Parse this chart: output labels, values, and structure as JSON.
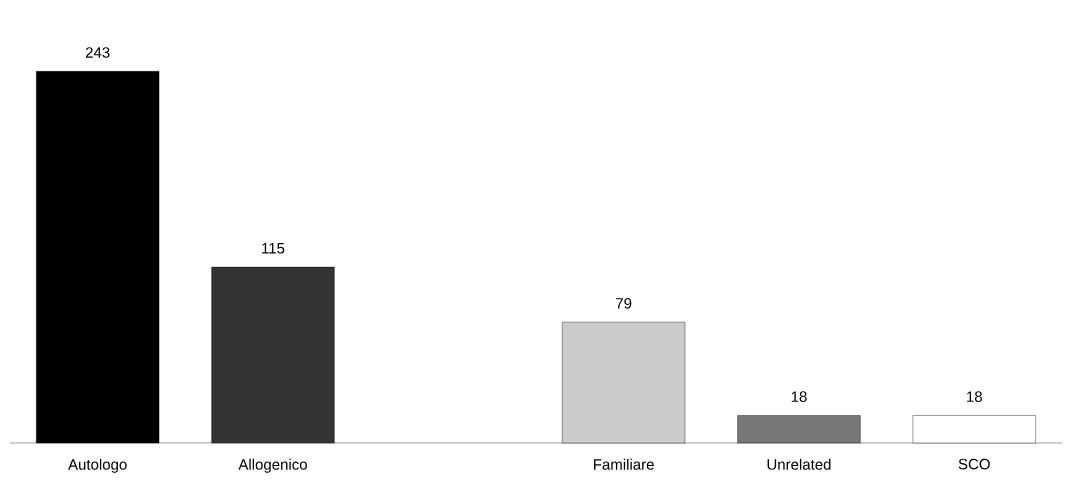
{
  "chart_data": {
    "type": "bar",
    "categories": [
      "Autologo",
      "Allogenico",
      null,
      "Familiare",
      "Unrelated",
      "SCO"
    ],
    "values": [
      243,
      115,
      null,
      79,
      18,
      18
    ],
    "colors": [
      "#000000",
      "#333333",
      "#ffffff",
      "#cccccc",
      "#777777",
      "#ffffff"
    ],
    "data_labels": true
  }
}
